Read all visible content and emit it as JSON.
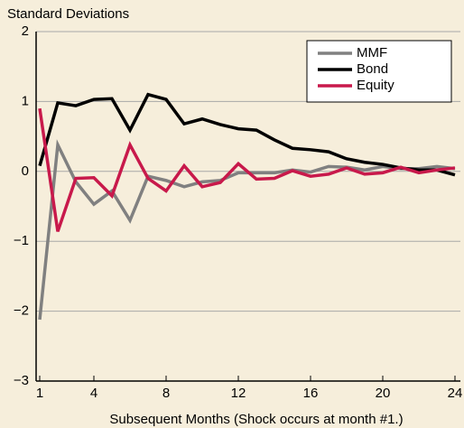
{
  "chart_data": {
    "type": "line",
    "y_axis_label": "Standard Deviations",
    "x_axis_label": "Subsequent Months (Shock occurs at month #1.)",
    "x": [
      1,
      2,
      3,
      4,
      5,
      6,
      7,
      8,
      9,
      10,
      11,
      12,
      13,
      14,
      15,
      16,
      17,
      18,
      19,
      20,
      21,
      22,
      23,
      24
    ],
    "series": [
      {
        "name": "MMF",
        "color": "#808080",
        "values": [
          -2.12,
          0.38,
          -0.15,
          -0.47,
          -0.28,
          -0.7,
          -0.07,
          -0.13,
          -0.22,
          -0.15,
          -0.13,
          -0.02,
          -0.02,
          -0.02,
          0.02,
          -0.01,
          0.07,
          0.06,
          0.02,
          0.07,
          0.04,
          0.04,
          0.07,
          0.04
        ]
      },
      {
        "name": "Bond",
        "color": "#000000",
        "values": [
          0.08,
          0.98,
          0.94,
          1.03,
          1.04,
          0.59,
          1.1,
          1.03,
          0.68,
          0.75,
          0.67,
          0.61,
          0.59,
          0.45,
          0.33,
          0.31,
          0.28,
          0.18,
          0.13,
          0.1,
          0.05,
          0.02,
          0.02,
          -0.05
        ]
      },
      {
        "name": "Equity",
        "color": "#c8194b",
        "values": [
          0.9,
          -0.86,
          -0.1,
          -0.09,
          -0.35,
          0.38,
          -0.1,
          -0.28,
          0.08,
          -0.22,
          -0.16,
          0.11,
          -0.11,
          -0.1,
          0.01,
          -0.07,
          -0.04,
          0.05,
          -0.04,
          -0.02,
          0.06,
          -0.02,
          0.02,
          0.05
        ]
      }
    ],
    "xlim": [
      0.8,
      24.3
    ],
    "xticks": [
      1,
      4,
      8,
      12,
      16,
      20,
      24
    ],
    "ylim": [
      -3,
      2
    ],
    "yticks": [
      {
        "value": -3,
        "label": "−3"
      },
      {
        "value": -2,
        "label": "−2"
      },
      {
        "value": -1,
        "label": "−1"
      },
      0,
      1,
      2
    ],
    "grid": true,
    "legend": "upper right"
  }
}
